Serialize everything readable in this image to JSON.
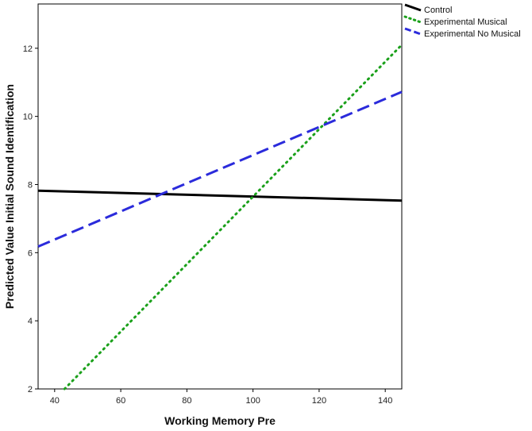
{
  "chart_data": {
    "type": "line",
    "title": "",
    "xlabel": "Working Memory Pre",
    "ylabel": "Predicted Value Initial Sound Identification",
    "xlim": [
      35,
      145
    ],
    "ylim": [
      2,
      13.3
    ],
    "x_ticks": [
      40,
      60,
      80,
      100,
      120,
      140
    ],
    "y_ticks": [
      2,
      4,
      6,
      8,
      10,
      12
    ],
    "grid": false,
    "legend_position": "top-right-outside",
    "series": [
      {
        "name": "Control",
        "color": "#000000",
        "dash": "solid",
        "x": [
          35,
          145
        ],
        "y": [
          7.82,
          7.53
        ]
      },
      {
        "name": "Experimental Musical",
        "color": "#1aa01a",
        "dash": "dotted",
        "x": [
          43,
          145
        ],
        "y": [
          2.0,
          12.1
        ]
      },
      {
        "name": "Experimental No Musical",
        "color": "#2b2bdb",
        "dash": "dashed",
        "x": [
          35,
          145
        ],
        "y": [
          6.18,
          10.72
        ]
      }
    ]
  }
}
